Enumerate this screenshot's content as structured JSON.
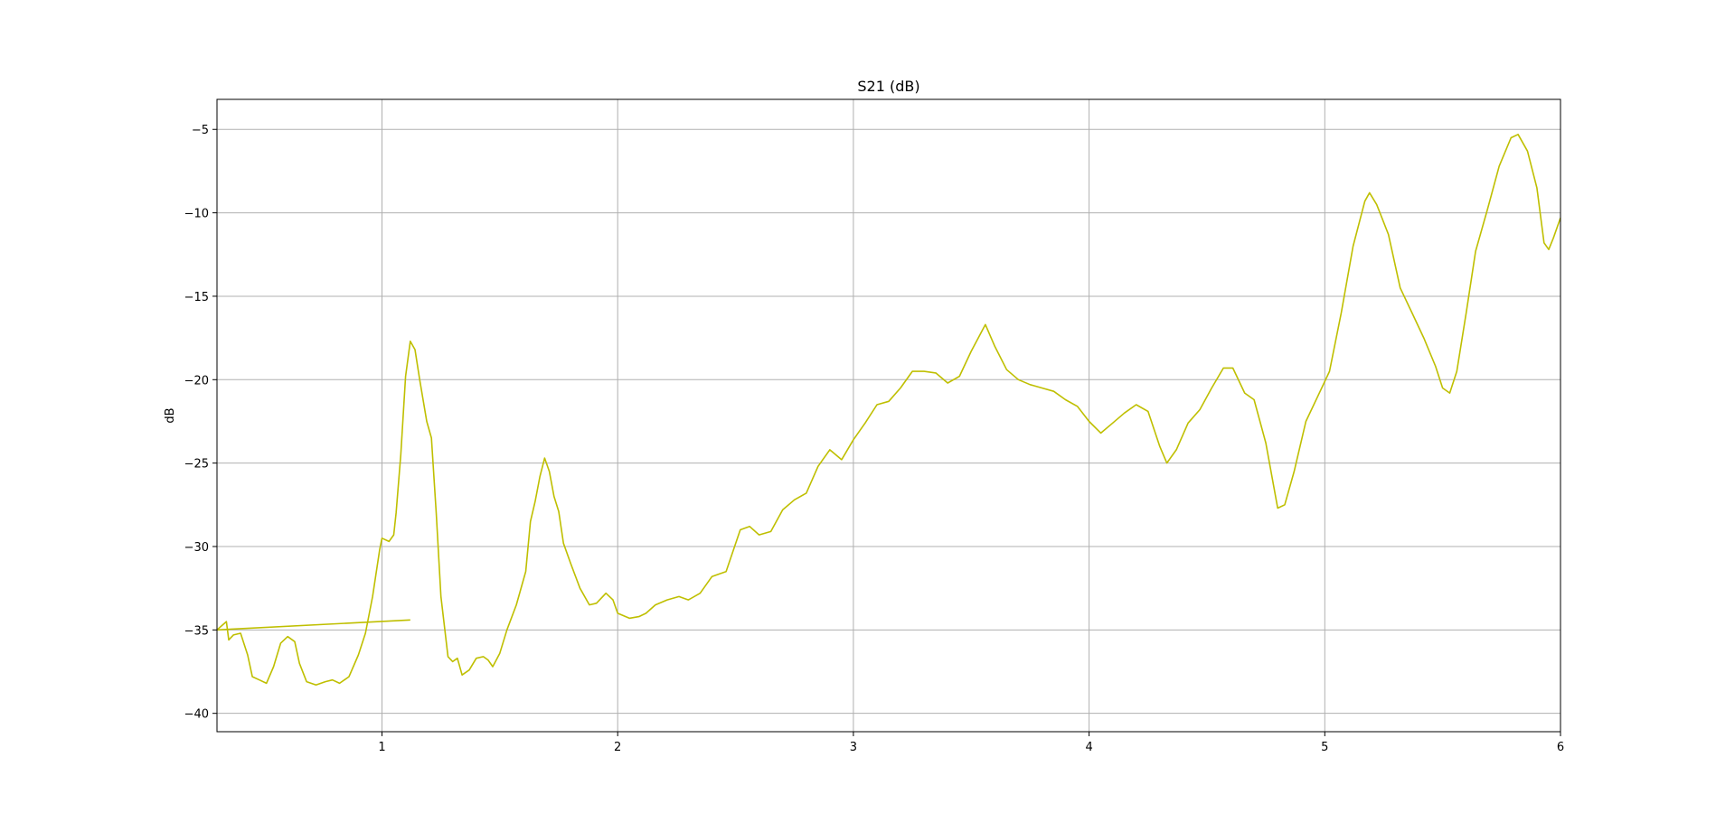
{
  "chart_data": {
    "type": "line",
    "title": "S21 (dB)",
    "xlabel": "",
    "ylabel": "dB",
    "xlim": [
      0.3,
      6.0
    ],
    "ylim": [
      -41.1,
      -3.2
    ],
    "xticks": [
      1,
      2,
      3,
      4,
      5,
      6
    ],
    "yticks": [
      -5,
      -10,
      -15,
      -20,
      -25,
      -30,
      -35,
      -40
    ],
    "xtick_labels": [
      "1",
      "2",
      "3",
      "4",
      "5",
      "6"
    ],
    "ytick_labels": [
      "−5",
      "−10",
      "−15",
      "−20",
      "−25",
      "−30",
      "−35",
      "−40"
    ],
    "grid": true,
    "legend": "none",
    "colors": {
      "line": "#bfbf00",
      "grid": "#b0b0b0",
      "frame": "#000000"
    },
    "series": [
      {
        "values": [
          [
            0.3,
            -35.0
          ],
          [
            0.34,
            -34.5
          ],
          [
            0.35,
            -35.6
          ],
          [
            0.37,
            -35.3
          ],
          [
            0.4,
            -35.2
          ],
          [
            0.43,
            -36.5
          ],
          [
            0.45,
            -37.8
          ],
          [
            0.48,
            -38.0
          ],
          [
            0.51,
            -38.2
          ],
          [
            0.54,
            -37.2
          ],
          [
            0.57,
            -35.8
          ],
          [
            0.6,
            -35.4
          ],
          [
            0.63,
            -35.7
          ],
          [
            0.65,
            -37.0
          ],
          [
            0.68,
            -38.1
          ],
          [
            0.72,
            -38.3
          ],
          [
            0.76,
            -38.1
          ],
          [
            0.79,
            -38.0
          ],
          [
            0.82,
            -38.2
          ],
          [
            0.86,
            -37.8
          ],
          [
            0.9,
            -36.5
          ],
          [
            0.93,
            -35.2
          ],
          [
            0.96,
            -33.0
          ],
          [
            0.99,
            -30.2
          ],
          [
            1.0,
            -29.5
          ],
          [
            1.03,
            -29.7
          ],
          [
            1.05,
            -29.3
          ],
          [
            1.06,
            -28.0
          ],
          [
            1.08,
            -24.5
          ],
          [
            1.1,
            -19.8
          ],
          [
            1.12,
            -17.7
          ],
          [
            1.14,
            -18.2
          ],
          [
            1.16,
            -20.0
          ],
          [
            1.19,
            -22.5
          ],
          [
            1.21,
            -23.5
          ],
          [
            1.23,
            -28.0
          ],
          [
            1.25,
            -33.0
          ],
          [
            1.28,
            -36.6
          ],
          [
            1.3,
            -36.9
          ],
          [
            1.32,
            -36.7
          ],
          [
            1.34,
            -37.7
          ],
          [
            1.37,
            -37.4
          ],
          [
            1.4,
            -36.7
          ],
          [
            1.43,
            -36.6
          ],
          [
            1.45,
            -36.8
          ],
          [
            1.47,
            -37.2
          ],
          [
            1.5,
            -36.4
          ],
          [
            1.53,
            -35.0
          ],
          [
            1.57,
            -33.5
          ],
          [
            1.61,
            -31.5
          ],
          [
            1.63,
            -28.5
          ],
          [
            1.65,
            -27.3
          ],
          [
            1.67,
            -25.8
          ],
          [
            1.69,
            -24.7
          ],
          [
            1.71,
            -25.5
          ],
          [
            1.73,
            -27.0
          ],
          [
            1.75,
            -27.9
          ],
          [
            1.77,
            -29.8
          ],
          [
            1.8,
            -31.0
          ],
          [
            1.84,
            -32.5
          ],
          [
            1.88,
            -33.5
          ],
          [
            1.91,
            -33.4
          ],
          [
            1.95,
            -32.8
          ],
          [
            1.98,
            -33.2
          ],
          [
            2.0,
            -34.0
          ],
          [
            2.05,
            -34.3
          ],
          [
            2.09,
            -34.2
          ],
          [
            2.12,
            -34.0
          ],
          [
            2.16,
            -33.5
          ],
          [
            2.21,
            -33.2
          ],
          [
            2.26,
            -33.0
          ],
          [
            2.3,
            -33.2
          ],
          [
            2.35,
            -32.8
          ],
          [
            2.4,
            -31.8
          ],
          [
            2.46,
            -31.5
          ],
          [
            2.52,
            -29.0
          ],
          [
            2.56,
            -28.8
          ],
          [
            2.6,
            -29.3
          ],
          [
            2.65,
            -29.1
          ],
          [
            2.7,
            -27.8
          ],
          [
            2.75,
            -27.2
          ],
          [
            2.8,
            -26.8
          ],
          [
            2.85,
            -25.2
          ],
          [
            2.9,
            -24.2
          ],
          [
            2.95,
            -24.8
          ],
          [
            3.0,
            -23.6
          ],
          [
            3.05,
            -22.6
          ],
          [
            3.1,
            -21.5
          ],
          [
            3.15,
            -21.3
          ],
          [
            3.2,
            -20.5
          ],
          [
            3.25,
            -19.5
          ],
          [
            3.3,
            -19.5
          ],
          [
            3.35,
            -19.6
          ],
          [
            3.4,
            -20.2
          ],
          [
            3.45,
            -19.8
          ],
          [
            3.5,
            -18.3
          ],
          [
            3.56,
            -16.7
          ],
          [
            3.6,
            -18.0
          ],
          [
            3.65,
            -19.4
          ],
          [
            3.7,
            -20.0
          ],
          [
            3.75,
            -20.3
          ],
          [
            3.8,
            -20.5
          ],
          [
            3.85,
            -20.7
          ],
          [
            3.9,
            -21.2
          ],
          [
            3.95,
            -21.6
          ],
          [
            4.0,
            -22.5
          ],
          [
            4.05,
            -23.2
          ],
          [
            4.1,
            -22.6
          ],
          [
            4.15,
            -22.0
          ],
          [
            4.2,
            -21.5
          ],
          [
            4.25,
            -21.9
          ],
          [
            4.3,
            -24.0
          ],
          [
            4.33,
            -25.0
          ],
          [
            4.37,
            -24.2
          ],
          [
            4.42,
            -22.6
          ],
          [
            4.47,
            -21.8
          ],
          [
            4.52,
            -20.5
          ],
          [
            4.57,
            -19.3
          ],
          [
            4.61,
            -19.3
          ],
          [
            4.66,
            -20.8
          ],
          [
            4.7,
            -21.2
          ],
          [
            4.75,
            -23.8
          ],
          [
            4.8,
            -27.7
          ],
          [
            4.83,
            -27.5
          ],
          [
            4.87,
            -25.5
          ],
          [
            4.92,
            -22.5
          ],
          [
            4.97,
            -21.0
          ],
          [
            5.02,
            -19.5
          ],
          [
            5.07,
            -16.0
          ],
          [
            5.12,
            -12.0
          ],
          [
            5.17,
            -9.3
          ],
          [
            5.19,
            -8.8
          ],
          [
            5.22,
            -9.5
          ],
          [
            5.27,
            -11.3
          ],
          [
            5.32,
            -14.5
          ],
          [
            5.37,
            -16.0
          ],
          [
            5.42,
            -17.5
          ],
          [
            5.47,
            -19.2
          ],
          [
            5.5,
            -20.5
          ],
          [
            5.53,
            -20.8
          ],
          [
            5.56,
            -19.5
          ],
          [
            5.6,
            -16.0
          ],
          [
            5.64,
            -12.3
          ],
          [
            5.69,
            -9.8
          ],
          [
            5.74,
            -7.2
          ],
          [
            5.79,
            -5.5
          ],
          [
            5.82,
            -5.3
          ],
          [
            5.86,
            -6.3
          ],
          [
            5.9,
            -8.5
          ],
          [
            5.93,
            -11.8
          ],
          [
            5.95,
            -12.2
          ],
          [
            5.97,
            -11.5
          ],
          [
            6.0,
            -10.3
          ]
        ]
      },
      {
        "values": [
          [
            0.3,
            -35.0
          ],
          [
            1.12,
            -34.4
          ]
        ]
      }
    ]
  }
}
